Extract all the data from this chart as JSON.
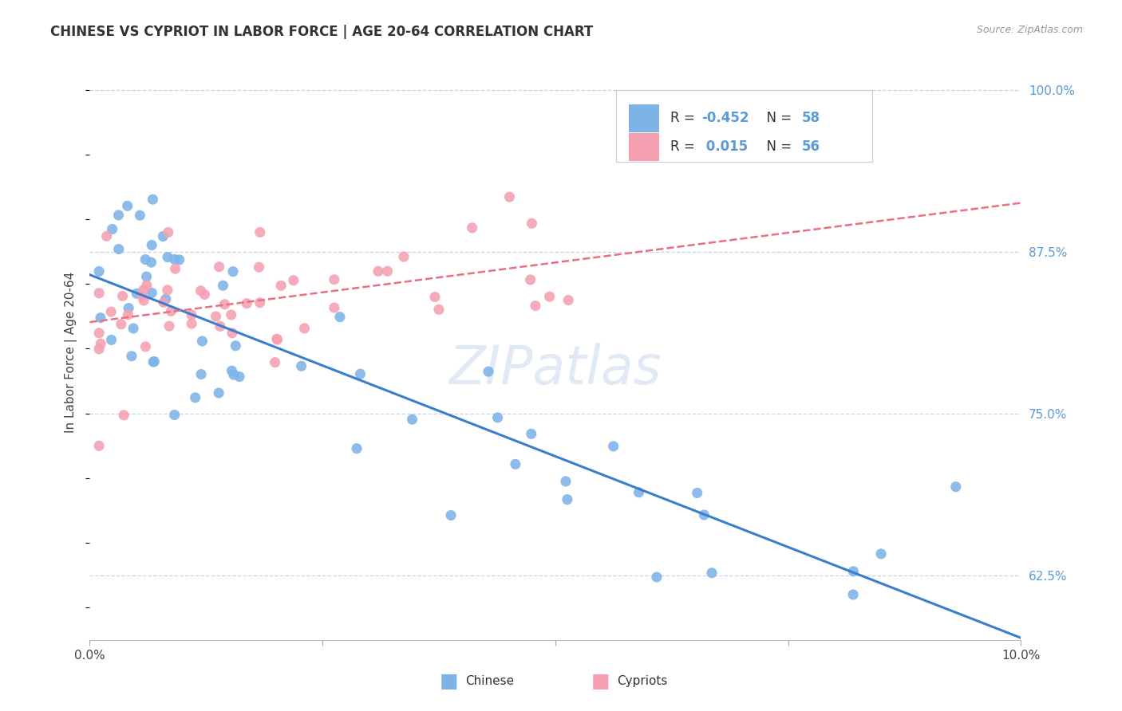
{
  "title": "CHINESE VS CYPRIOT IN LABOR FORCE | AGE 20-64 CORRELATION CHART",
  "source": "Source: ZipAtlas.com",
  "ylabel": "In Labor Force | Age 20-64",
  "xlim": [
    0.0,
    0.1
  ],
  "ylim": [
    0.575,
    1.02
  ],
  "yticks": [
    0.625,
    0.75,
    0.875,
    1.0
  ],
  "ytick_labels": [
    "62.5%",
    "75.0%",
    "87.5%",
    "100.0%"
  ],
  "xticks": [
    0.0,
    0.025,
    0.05,
    0.075,
    0.1
  ],
  "xtick_labels": [
    "0.0%",
    "",
    "",
    "",
    "10.0%"
  ],
  "watermark": "ZIPatlas",
  "legend_chinese_r": "-0.452",
  "legend_chinese_n": "58",
  "legend_cypriot_r": "0.015",
  "legend_cypriot_n": "56",
  "chinese_color": "#7EB3E8",
  "cypriot_color": "#F4A0B0",
  "chinese_line_color": "#3A7FCC",
  "cypriot_line_color": "#E87080",
  "background_color": "#FFFFFF",
  "title_color": "#333333",
  "right_tick_color": "#5B9BD5",
  "grid_color": "#C8D4E8",
  "watermark_color": "#C8D8EE"
}
